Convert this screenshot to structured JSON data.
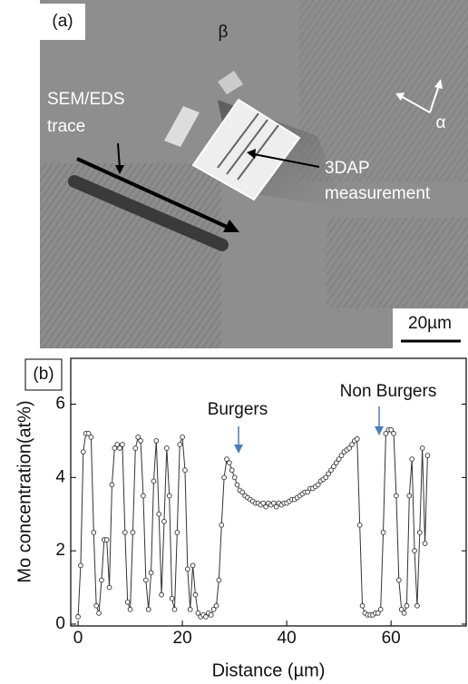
{
  "panel_a": {
    "label": "(a)",
    "phase_beta": "β",
    "trace_label_1": "SEM/EDS",
    "trace_label_2": "trace",
    "measurement_label_1": "3DAP",
    "measurement_label_2": "measurement",
    "phase_alpha": "α",
    "scale_bar": "20µm"
  },
  "chart_data": {
    "type": "line",
    "panel_label": "(b)",
    "xlabel": "Distance (µm)",
    "ylabel": "Mo concentration(at%)",
    "annotations": [
      "Burgers",
      "Non Burgers"
    ],
    "color": "#333333",
    "x": [
      0,
      0.5,
      1,
      1.5,
      2,
      2.5,
      3,
      3.5,
      4,
      4.5,
      5,
      5.5,
      6,
      6.5,
      7,
      7.5,
      8,
      8.5,
      9,
      9.5,
      10,
      10.5,
      11,
      11.5,
      12,
      12.5,
      13,
      13.5,
      14,
      14.5,
      15,
      15.5,
      16,
      16.5,
      17,
      17.5,
      18,
      18.5,
      19,
      19.5,
      20,
      20.5,
      21,
      21.5,
      22,
      22.5,
      23,
      23.5,
      24,
      24.5,
      25,
      25.5,
      26,
      26.5,
      27,
      27.5,
      28,
      28.5,
      29,
      29.5,
      30,
      30.5,
      31,
      31.5,
      32,
      32.5,
      33,
      33.5,
      34,
      34.5,
      35,
      35.5,
      36,
      36.5,
      37,
      37.5,
      38,
      38.5,
      39,
      39.5,
      40,
      40.5,
      41,
      41.5,
      42,
      42.5,
      43,
      43.5,
      44,
      44.5,
      45,
      45.5,
      46,
      46.5,
      47,
      47.5,
      48,
      48.5,
      49,
      49.5,
      50,
      50.5,
      51,
      51.5,
      52,
      52.5,
      53,
      53.5,
      54,
      54.5,
      55,
      55.5,
      56,
      56.5,
      57,
      57.5,
      58,
      58.5,
      59,
      59.5,
      60,
      60.5,
      61,
      61.5,
      62,
      62.5,
      63,
      63.5,
      64,
      64.5,
      65,
      65.5,
      66,
      66.5,
      67
    ],
    "values": [
      0.2,
      1.6,
      4.7,
      5.2,
      5.2,
      5.1,
      2.5,
      0.5,
      0.3,
      1.2,
      2.3,
      2.3,
      1.0,
      3.8,
      4.8,
      4.9,
      4.8,
      4.9,
      2.5,
      0.6,
      0.4,
      2.5,
      4.8,
      5.1,
      5.0,
      3.5,
      1.2,
      0.4,
      1.4,
      3.9,
      5.0,
      3.0,
      0.8,
      2.8,
      4.8,
      3.5,
      0.7,
      0.4,
      2.5,
      4.9,
      5.1,
      4.2,
      1.5,
      0.4,
      1.6,
      0.8,
      0.3,
      0.2,
      0.25,
      0.2,
      0.3,
      0.25,
      0.4,
      0.5,
      1.2,
      2.7,
      4.0,
      4.5,
      4.4,
      4.2,
      4.0,
      3.8,
      3.65,
      3.6,
      3.5,
      3.45,
      3.4,
      3.35,
      3.3,
      3.3,
      3.25,
      3.3,
      3.2,
      3.3,
      3.25,
      3.3,
      3.2,
      3.3,
      3.25,
      3.3,
      3.3,
      3.35,
      3.4,
      3.4,
      3.45,
      3.5,
      3.55,
      3.6,
      3.6,
      3.7,
      3.7,
      3.75,
      3.8,
      3.9,
      3.95,
      4.0,
      4.1,
      4.2,
      4.3,
      4.4,
      4.5,
      4.6,
      4.7,
      4.75,
      4.8,
      4.9,
      5.0,
      5.05,
      2.7,
      0.5,
      0.3,
      0.25,
      0.25,
      0.25,
      0.3,
      0.3,
      0.4,
      2.5,
      5.2,
      5.3,
      5.3,
      5.2,
      3.5,
      1.2,
      0.4,
      0.3,
      0.5,
      3.5,
      4.5,
      2.0,
      0.5,
      2.5,
      4.8,
      2.2,
      4.6
    ],
    "xlim": [
      -1.4,
      74.4
    ],
    "ylim": [
      -0.05,
      7.25
    ],
    "xticks": [
      0,
      20,
      40,
      60
    ],
    "yticks": [
      0,
      2,
      4,
      6
    ]
  }
}
